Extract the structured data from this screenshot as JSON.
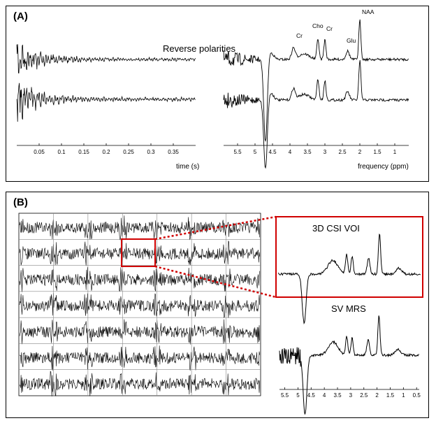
{
  "panel_a": {
    "label": "(A)",
    "annotation": "Reverse polarities",
    "time_axis": {
      "label": "time (s)",
      "ticks": [
        "0.05",
        "0.1",
        "0.15",
        "0.2",
        "0.25",
        "0.3",
        "0.35"
      ]
    },
    "freq_axis": {
      "label": "frequency (ppm)",
      "ticks": [
        "5.5",
        "5",
        "4.5",
        "4",
        "3.5",
        "3",
        "2.5",
        "2",
        "1.5",
        "1"
      ]
    },
    "peaks": [
      "Cr",
      "Cho",
      "Cr",
      "Glu",
      "NAA"
    ]
  },
  "panel_b": {
    "label": "(B)",
    "inset_title": "3D CSI VOI",
    "sv_title": "SV MRS",
    "sv_ticks": [
      "5.5",
      "5",
      "4.5",
      "4",
      "3.5",
      "3",
      "2.5",
      "2",
      "1.5",
      "1",
      "0.5"
    ]
  },
  "chart_data": [
    {
      "type": "line",
      "title": "",
      "xlabel": "time (s)",
      "ylabel": "",
      "xlim": [
        0,
        0.4
      ],
      "x_ticks": [
        0.05,
        0.1,
        0.15,
        0.2,
        0.25,
        0.3,
        0.35
      ],
      "series": [
        {
          "description": "upper FID, decaying oscillation",
          "decay_time_s": 0.05
        },
        {
          "description": "lower FID, decaying oscillation (reversed polarity)",
          "decay_time_s": 0.05
        }
      ]
    },
    {
      "type": "line",
      "title": "",
      "xlabel": "frequency (ppm)",
      "ylabel": "",
      "xlim": [
        5.9,
        0.6
      ],
      "x_ticks": [
        5.5,
        5,
        4.5,
        4,
        3.5,
        3,
        2.5,
        2,
        1.5,
        1
      ],
      "peaks": [
        {
          "label": "Cr",
          "ppm": 3.9
        },
        {
          "label": "Cho",
          "ppm": 3.2
        },
        {
          "label": "Cr",
          "ppm": 3.0
        },
        {
          "label": "Glu",
          "ppm": 2.35
        },
        {
          "label": "NAA",
          "ppm": 2.0
        }
      ],
      "water_dip_ppm": 4.7
    },
    {
      "type": "heatmap",
      "description": "3D CSI voxel grid of spectra",
      "rows": 7,
      "cols": 7,
      "highlighted_voxel": {
        "row": 2,
        "col": 4
      }
    },
    {
      "type": "line",
      "title": "SV MRS",
      "xlabel": "",
      "xlim": [
        5.7,
        0.4
      ],
      "x_ticks": [
        5.5,
        5,
        4.5,
        4,
        3.5,
        3,
        2.5,
        2,
        1.5,
        1,
        0.5
      ],
      "peaks_ppm": [
        3.2,
        3.0,
        2.35,
        2.0
      ]
    }
  ]
}
